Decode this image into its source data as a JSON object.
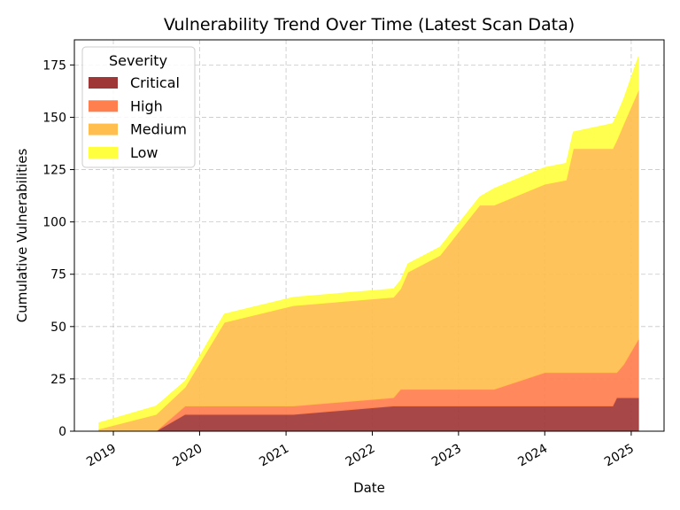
{
  "chart_data": {
    "type": "area",
    "stacked": true,
    "title": "Vulnerability Trend Over Time (Latest Scan Data)",
    "xlabel": "Date",
    "ylabel": "Cumulative Vulnerabilities",
    "xlim": [
      "2018-07-20",
      "2025-05-20"
    ],
    "ylim": [
      0,
      187
    ],
    "x_ticks": [
      "2019-01-01",
      "2020-01-01",
      "2021-01-01",
      "2022-01-01",
      "2023-01-01",
      "2024-01-01",
      "2025-01-01"
    ],
    "x_tick_labels": [
      "2019",
      "2020",
      "2021",
      "2022",
      "2023",
      "2024",
      "2025"
    ],
    "y_ticks": [
      0,
      25,
      50,
      75,
      100,
      125,
      150,
      175
    ],
    "y_tick_labels": [
      "0",
      "25",
      "50",
      "75",
      "100",
      "125",
      "150",
      "175"
    ],
    "grid": true,
    "legend": {
      "title": "Severity",
      "position": "upper-left"
    },
    "x": [
      "2018-11-01",
      "2019-07-01",
      "2019-11-01",
      "2020-04-15",
      "2021-02-01",
      "2022-04-01",
      "2022-05-01",
      "2022-06-01",
      "2022-10-15",
      "2023-04-01",
      "2023-06-01",
      "2024-01-01",
      "2024-04-01",
      "2024-05-01",
      "2024-10-15",
      "2024-11-01",
      "2024-12-01",
      "2025-02-01"
    ],
    "series": [
      {
        "name": "Critical",
        "color": "#a03737",
        "values": [
          0,
          0,
          8,
          8,
          8,
          12,
          12,
          12,
          12,
          12,
          12,
          12,
          12,
          12,
          12,
          16,
          16,
          16
        ]
      },
      {
        "name": "High",
        "color": "#ff7f4f",
        "values": [
          0,
          0,
          4,
          4,
          4,
          4,
          8,
          8,
          8,
          8,
          8,
          16,
          16,
          16,
          16,
          12,
          16,
          28
        ]
      },
      {
        "name": "Medium",
        "color": "#ffbe4d",
        "values": [
          1,
          8,
          9,
          40,
          48,
          48,
          48,
          56,
          64,
          88,
          88,
          90,
          92,
          107,
          107,
          111,
          115,
          119
        ]
      },
      {
        "name": "Low",
        "color": "#ffff40",
        "values": [
          3,
          4,
          3,
          4,
          4,
          4,
          4,
          4,
          4,
          4,
          8,
          8,
          8,
          8,
          12,
          12,
          12,
          16
        ]
      }
    ]
  }
}
